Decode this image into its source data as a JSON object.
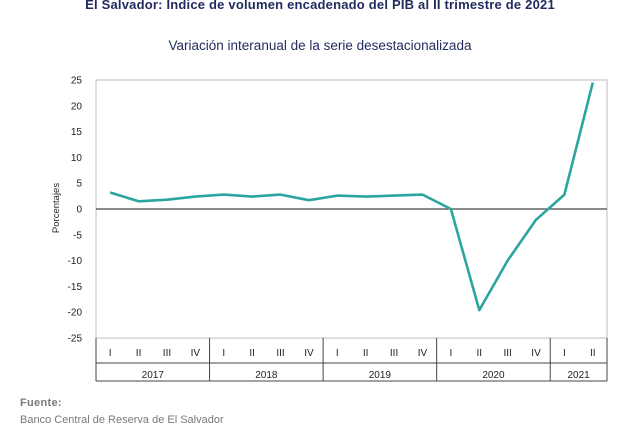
{
  "title": "El Salvador: Índice de volumen encadenado del PIB al II trimestre de 2021",
  "subtitle": "Variación interanual de la serie desestacionalizada",
  "source_label": "Fuente:",
  "source_text": "Banco Central de Reserva de El Salvador",
  "colors": {
    "line": "#2aa5a0",
    "axis": "#444444",
    "frame": "#bdbdbd"
  },
  "chart_data": {
    "type": "line",
    "ylabel": "Porcentajes",
    "xlabel": "",
    "ylim": [
      -25,
      25
    ],
    "yticks": [
      25,
      20,
      15,
      10,
      5,
      0,
      -5,
      -10,
      -15,
      -20,
      -25
    ],
    "grid": false,
    "years": [
      {
        "label": "2017",
        "quarters": [
          "I",
          "II",
          "III",
          "IV"
        ]
      },
      {
        "label": "2018",
        "quarters": [
          "I",
          "II",
          "III",
          "IV"
        ]
      },
      {
        "label": "2019",
        "quarters": [
          "I",
          "II",
          "III",
          "IV"
        ]
      },
      {
        "label": "2020",
        "quarters": [
          "I",
          "II",
          "III",
          "IV"
        ]
      },
      {
        "label": "2021",
        "quarters": [
          "I",
          "II"
        ]
      }
    ],
    "series": [
      {
        "values": [
          3.2,
          1.5,
          1.8,
          2.4,
          2.8,
          2.4,
          2.8,
          1.7,
          2.6,
          2.4,
          2.6,
          2.8,
          0.0,
          -19.6,
          -10.0,
          -2.1,
          2.8,
          24.5
        ]
      }
    ]
  }
}
